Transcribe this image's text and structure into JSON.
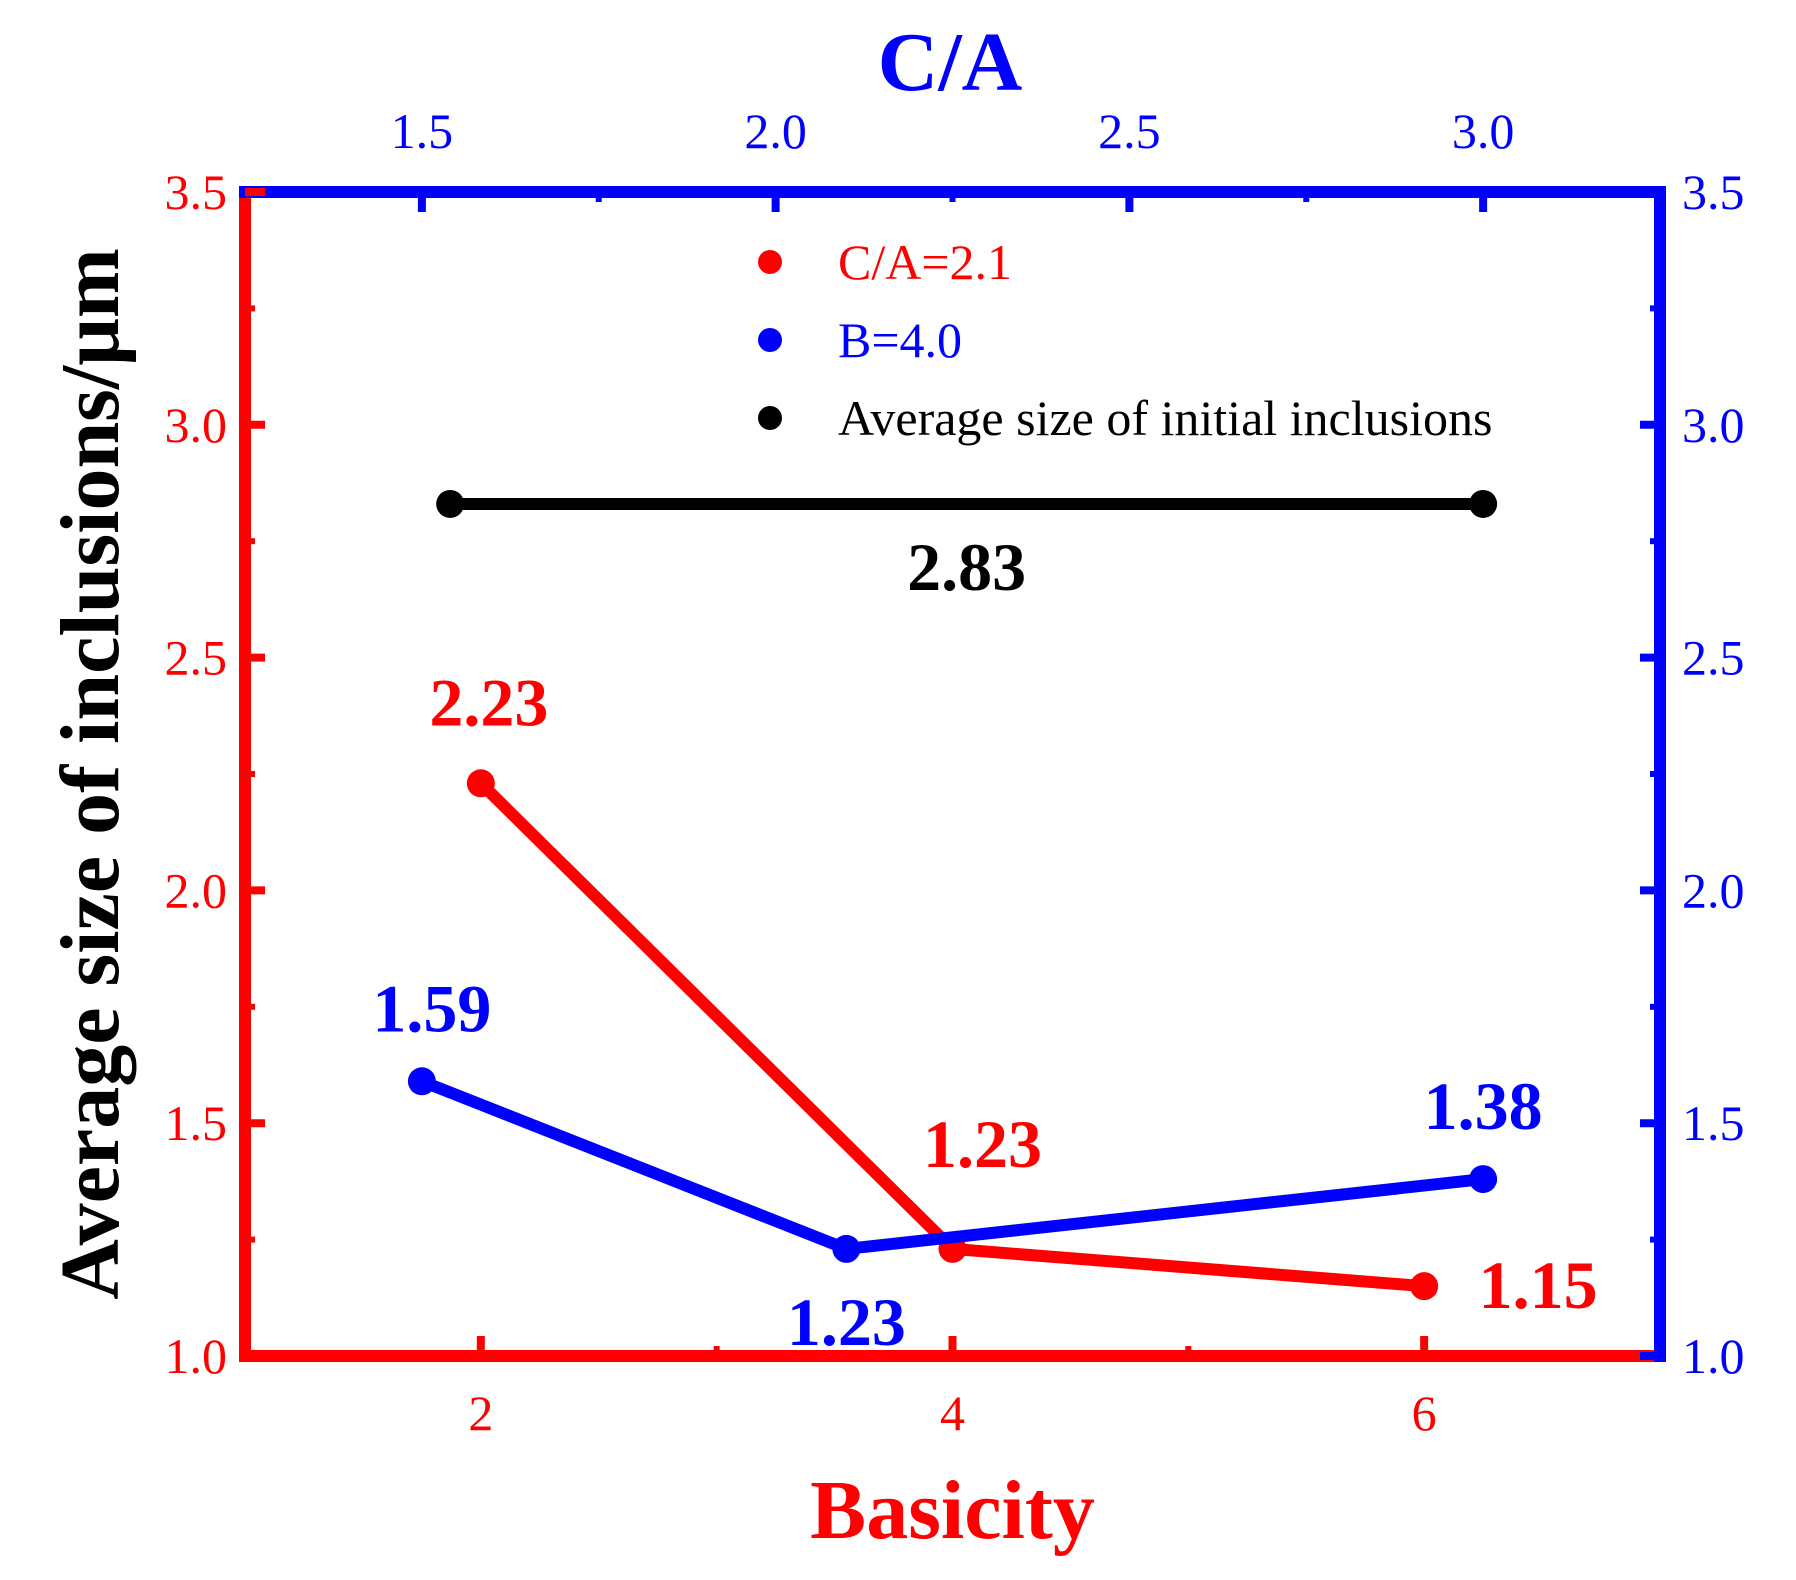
{
  "chart_data": {
    "type": "line",
    "title": "",
    "bottom_axis": {
      "label": "Basicity",
      "color": "#ff0000",
      "range": [
        1,
        7
      ],
      "ticks": [
        2,
        4,
        6
      ],
      "tick_labels": [
        "2",
        "4",
        "6"
      ]
    },
    "top_axis": {
      "label": "C/A",
      "color": "#0000ff",
      "range": [
        1.25,
        3.25
      ],
      "ticks": [
        1.5,
        2.0,
        2.5,
        3.0
      ],
      "tick_labels": [
        "1.5",
        "2.0",
        "2.5",
        "3.0"
      ]
    },
    "left_axis": {
      "label": "Average size of inclusions/μm",
      "color": "#ff0000",
      "range": [
        1.0,
        3.5
      ],
      "ticks": [
        1.0,
        1.5,
        2.0,
        2.5,
        3.0,
        3.5
      ],
      "tick_labels": [
        "1.0",
        "1.5",
        "2.0",
        "2.5",
        "3.0",
        "3.5"
      ]
    },
    "right_axis": {
      "color": "#0000ff",
      "range": [
        1.0,
        3.5
      ],
      "ticks": [
        1.0,
        1.5,
        2.0,
        2.5,
        3.0,
        3.5
      ],
      "tick_labels": [
        "1.0",
        "1.5",
        "2.0",
        "2.5",
        "3.0",
        "3.5"
      ]
    },
    "series": [
      {
        "name": "C/A=2.1",
        "color": "#ff0000",
        "x_axis": "bottom",
        "x": [
          2,
          4,
          6
        ],
        "y": [
          2.23,
          1.23,
          1.15
        ],
        "labels": [
          "2.23",
          "1.23",
          "1.15"
        ]
      },
      {
        "name": "B=4.0",
        "color": "#0000ff",
        "x_axis": "top",
        "x": [
          1.5,
          2.1,
          3.0
        ],
        "y": [
          1.59,
          1.23,
          1.38
        ],
        "labels": [
          "1.59",
          "1.23",
          "1.38"
        ]
      },
      {
        "name": "Average size of initial inclusions",
        "color": "#000000",
        "x_axis": "top",
        "x": [
          1.54,
          3.0
        ],
        "y": [
          2.83,
          2.83
        ],
        "labels": [
          "2.83"
        ]
      }
    ],
    "legend": {
      "position": "top-right",
      "entries": [
        "C/A=2.1",
        "B=4.0",
        "Average size of initial inclusions"
      ]
    }
  }
}
